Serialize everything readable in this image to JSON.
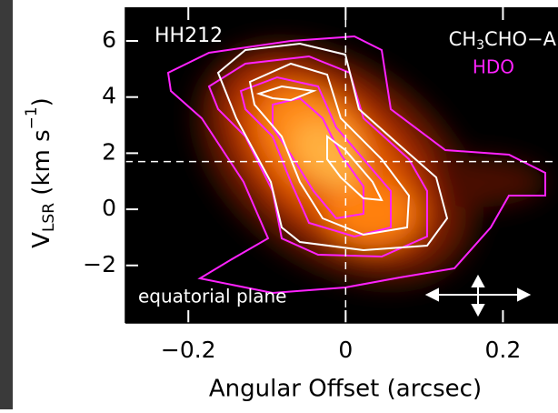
{
  "chart_data": {
    "type": "heatmap",
    "xlabel": "Angular Offset (arcsec)",
    "ylabel": {
      "main": "V",
      "sub": "LSR",
      "rest": " (km s",
      "sup": "−1",
      "end": ")"
    },
    "xlim": [
      -0.28,
      0.27
    ],
    "ylim": [
      -4.05,
      7.2
    ],
    "xticks": [
      {
        "value": -0.2,
        "label": "−0.2"
      },
      0,
      0.2
    ],
    "yticks": [
      {
        "value": -2,
        "label": "−2"
      },
      0,
      2,
      4,
      6
    ],
    "vlines": [
      0
    ],
    "hlines": [
      1.7
    ],
    "annotations": {
      "source": "HH212",
      "tracer1": {
        "main": "CH",
        "sub": "3",
        "rest": "CHO−A"
      },
      "tracer2": "HDO",
      "plane": "equatorial plane"
    },
    "series": [
      {
        "name": "CH3CHO−A",
        "color": "#ffffff"
      },
      {
        "name": "HDO",
        "color": "#ff22ff"
      }
    ]
  }
}
